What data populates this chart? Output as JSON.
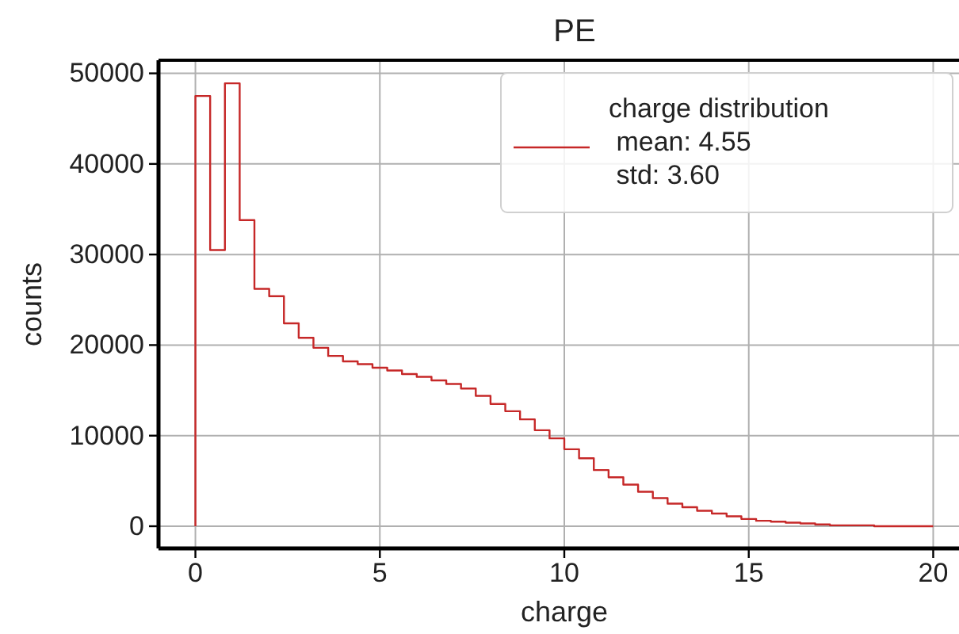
{
  "chart_data": {
    "type": "histogram",
    "title": "PE",
    "xlabel": "charge",
    "ylabel": "counts",
    "bins": [
      0,
      0.4,
      0.8,
      1.2,
      1.6,
      2,
      2.4,
      2.8,
      3.2,
      3.6,
      4,
      4.4,
      4.8,
      5.2,
      5.6,
      6,
      6.4,
      6.8,
      7.2,
      7.6,
      8,
      8.4,
      8.8,
      9.2,
      9.6,
      10,
      10.4,
      10.8,
      11.2,
      11.6,
      12,
      12.4,
      12.8,
      13.2,
      13.6,
      14,
      14.4,
      14.8,
      15.2,
      15.6,
      16,
      16.4,
      16.8,
      17.2,
      17.6,
      18,
      18.4,
      18.8,
      19.2,
      19.6,
      20
    ],
    "series": [
      {
        "name": "charge distribution\n mean: 4.55\n std: 3.60",
        "color": "#c62828",
        "values": [
          47500,
          30500,
          48900,
          33800,
          26200,
          25400,
          22400,
          20800,
          19700,
          18800,
          18200,
          17900,
          17500,
          17200,
          16800,
          16500,
          16100,
          15700,
          15200,
          14400,
          13500,
          12700,
          11800,
          10600,
          9700,
          8500,
          7500,
          6200,
          5400,
          4600,
          3800,
          3100,
          2500,
          2100,
          1700,
          1400,
          1100,
          800,
          600,
          500,
          400,
          300,
          200,
          100,
          100,
          100,
          0,
          0,
          0,
          0
        ]
      }
    ],
    "xlim": [
      -1,
      21
    ],
    "ylim": [
      -2450,
      51450
    ],
    "xticks": [
      0,
      5,
      10,
      15,
      20
    ],
    "yticks": [
      0,
      10000,
      20000,
      30000,
      40000,
      50000
    ],
    "grid": true,
    "legend": "top right"
  }
}
